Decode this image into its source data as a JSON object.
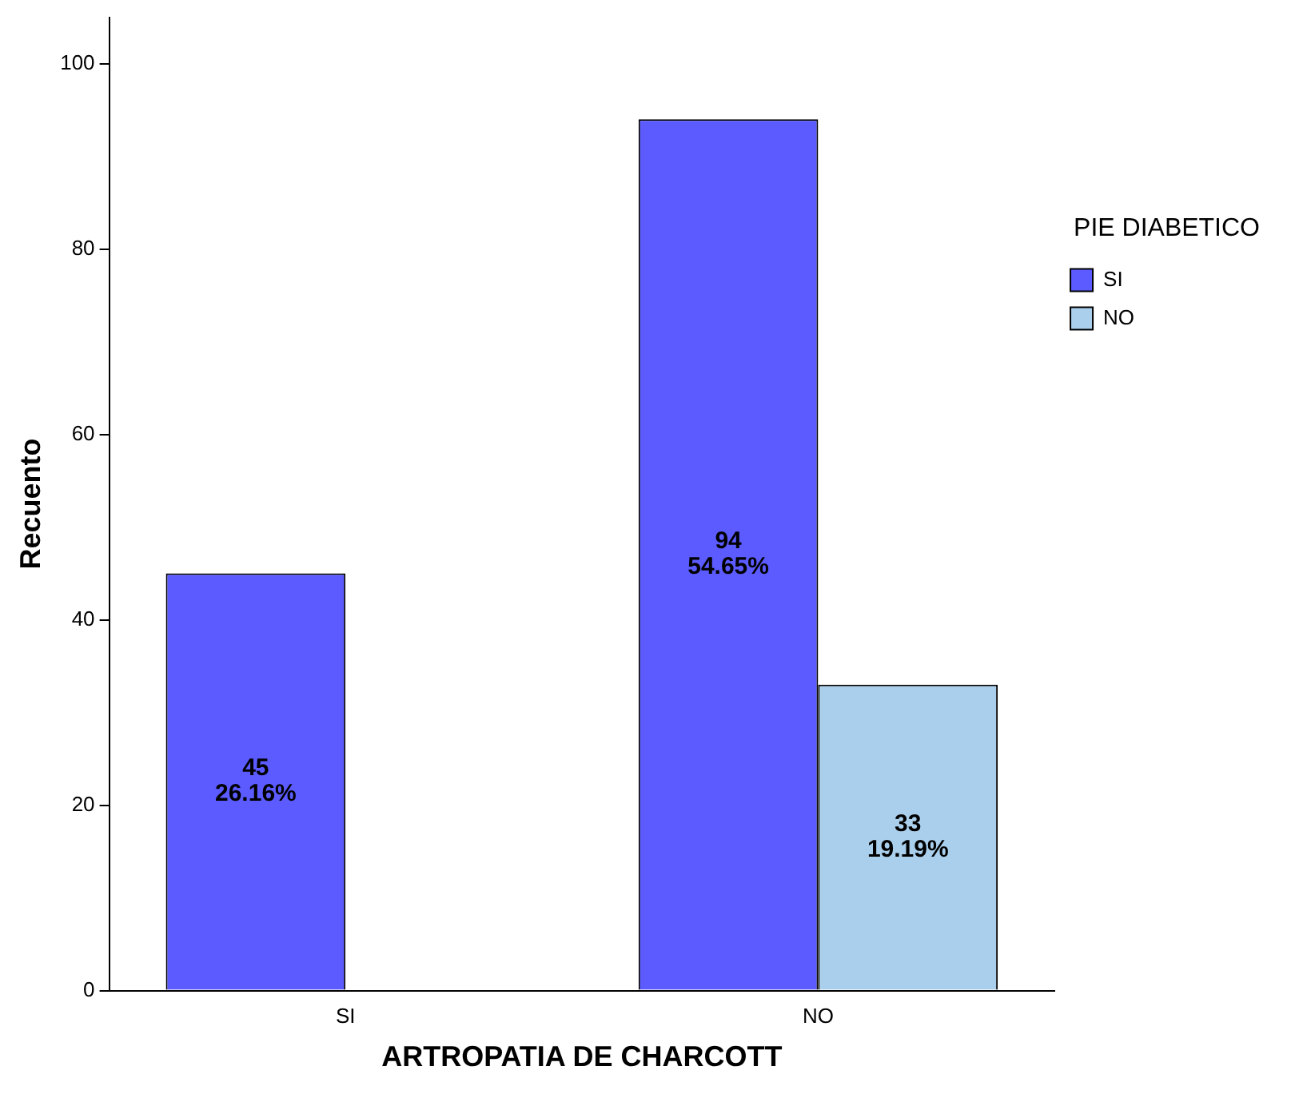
{
  "chart_data": {
    "type": "bar",
    "xlabel": "ARTROPATIA DE CHARCOTT",
    "ylabel": "Recuento",
    "legend_title": "PIE DIABETICO",
    "categories": [
      "SI",
      "NO"
    ],
    "series": [
      {
        "name": "SI",
        "color": "#5b5bff",
        "values": [
          45,
          94
        ],
        "value_labels": [
          "45\n26.16%",
          "94\n54.65%"
        ]
      },
      {
        "name": "NO",
        "color": "#aacfec",
        "values": [
          null,
          33
        ],
        "value_labels": [
          null,
          "33\n19.19%"
        ]
      }
    ],
    "ylim": [
      0,
      105
    ],
    "yticks": [
      0,
      20,
      40,
      60,
      80,
      100
    ],
    "grid": false,
    "legend": "right"
  }
}
